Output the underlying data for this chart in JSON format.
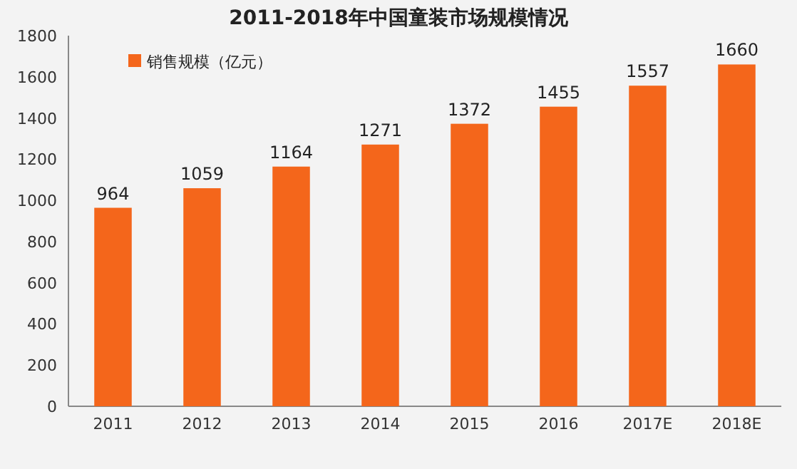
{
  "chart_data": {
    "type": "bar",
    "title": "2011-2018年中国童装市场规模情况",
    "categories": [
      "2011",
      "2012",
      "2013",
      "2014",
      "2015",
      "2016",
      "2017E",
      "2018E"
    ],
    "series": [
      {
        "name": "销售规模（亿元）",
        "color": "#f4661b",
        "values": [
          964,
          1059,
          1164,
          1271,
          1372,
          1455,
          1557,
          1660
        ]
      }
    ],
    "ylim": [
      0,
      1800
    ],
    "yticks": [
      0,
      200,
      400,
      600,
      800,
      1000,
      1200,
      1400,
      1600,
      1800
    ],
    "data_labels": true,
    "legend": "top left"
  }
}
